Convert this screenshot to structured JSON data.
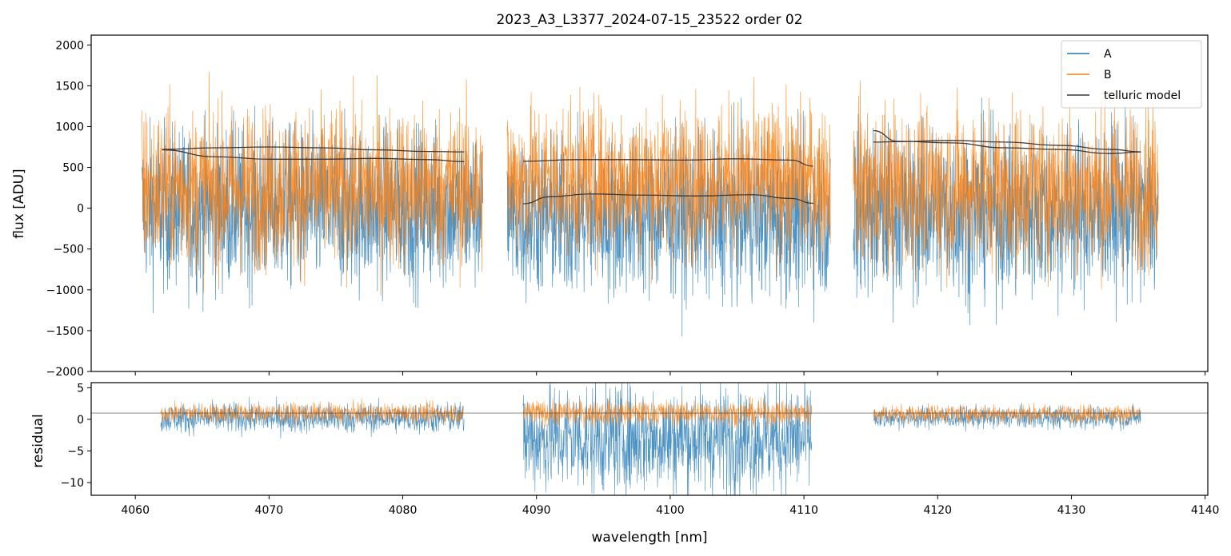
{
  "chart_data": [
    {
      "type": "line",
      "title": "2023_A3_L3377_2024-07-15_23522  order 02",
      "xlabel": "",
      "ylabel": "flux [ADU]",
      "xlim": [
        4056.7,
        4140.2
      ],
      "ylim": [
        -2000,
        2120
      ],
      "yticks": [
        -2000,
        -1500,
        -1000,
        -500,
        0,
        500,
        1000,
        1500,
        2000
      ],
      "ytick_labels": [
        "−2000",
        "−1500",
        "−1000",
        "−500",
        "0",
        "500",
        "1000",
        "1500",
        "2000"
      ],
      "grid": false,
      "legend": {
        "placement": "top-right",
        "entries": [
          "A",
          "B",
          "telluric model"
        ]
      },
      "colors": {
        "A": "#1f77b4",
        "B": "#ff7f0e",
        "telluric model": "#3a3a3a"
      },
      "segments": [
        {
          "x": [
            4060.5,
            4086.0
          ],
          "series": [
            {
              "name": "A",
              "center": 0,
              "spread": 900
            },
            {
              "name": "B",
              "center": 250,
              "spread": 900
            }
          ]
        },
        {
          "x": [
            4087.8,
            4112.0
          ],
          "series": [
            {
              "name": "A",
              "center": -100,
              "spread": 900
            },
            {
              "name": "B",
              "center": 350,
              "spread": 850
            }
          ]
        },
        {
          "x": [
            4113.7,
            4136.5
          ],
          "series": [
            {
              "name": "A",
              "center": -50,
              "spread": 950
            },
            {
              "name": "B",
              "center": 250,
              "spread": 900
            }
          ]
        }
      ],
      "telluric_model": [
        {
          "x": [
            4062,
            4066,
            4070,
            4074,
            4078,
            4082,
            4084.6
          ],
          "y": [
            720,
            740,
            750,
            740,
            715,
            695,
            690
          ]
        },
        {
          "x": [
            4062,
            4066,
            4070,
            4074,
            4078,
            4082,
            4084.6
          ],
          "y": [
            715,
            630,
            600,
            600,
            610,
            595,
            570
          ]
        },
        {
          "x": [
            4089,
            4093,
            4097,
            4101,
            4105,
            4109,
            4110.7
          ],
          "y": [
            575,
            595,
            595,
            590,
            605,
            590,
            515
          ]
        },
        {
          "x": [
            4089,
            4091,
            4094,
            4098,
            4102,
            4106,
            4109,
            4110.7
          ],
          "y": [
            55,
            140,
            175,
            160,
            150,
            165,
            120,
            60
          ]
        },
        {
          "x": [
            4115.2,
            4117,
            4121,
            4125,
            4129,
            4133,
            4135.2
          ],
          "y": [
            950,
            820,
            800,
            740,
            720,
            670,
            690
          ]
        },
        {
          "x": [
            4115.2,
            4117,
            4121,
            4125,
            4129,
            4133,
            4135.2
          ],
          "y": [
            810,
            815,
            830,
            810,
            770,
            720,
            690
          ]
        }
      ]
    },
    {
      "type": "line",
      "title": "",
      "xlabel": "wavelength [nm]",
      "ylabel": "residual",
      "xlim": [
        4056.7,
        4140.2
      ],
      "ylim": [
        -12,
        5.8
      ],
      "xticks": [
        4060,
        4070,
        4080,
        4090,
        4100,
        4110,
        4120,
        4130,
        4140
      ],
      "xtick_labels": [
        "4060",
        "4070",
        "4080",
        "4090",
        "4100",
        "4110",
        "4120",
        "4130",
        "4140"
      ],
      "yticks": [
        -10,
        -5,
        0,
        5
      ],
      "ytick_labels": [
        "−10",
        "−5",
        "0",
        "5"
      ],
      "reference_line": 1,
      "grid": false,
      "segments": [
        {
          "x": [
            4061.9,
            4084.6
          ],
          "series": [
            {
              "name": "A",
              "center": 0.2,
              "spread": 2.2
            },
            {
              "name": "B",
              "center": 1.0,
              "spread": 1.4
            }
          ]
        },
        {
          "x": [
            4089.0,
            4110.6
          ],
          "series": [
            {
              "name": "A",
              "center": -3.0,
              "spread": 8.0
            },
            {
              "name": "B",
              "center": 1.0,
              "spread": 1.8
            }
          ]
        },
        {
          "x": [
            4115.2,
            4135.2
          ],
          "series": [
            {
              "name": "A",
              "center": 0.3,
              "spread": 1.6
            },
            {
              "name": "B",
              "center": 0.9,
              "spread": 1.3
            }
          ]
        }
      ]
    }
  ]
}
